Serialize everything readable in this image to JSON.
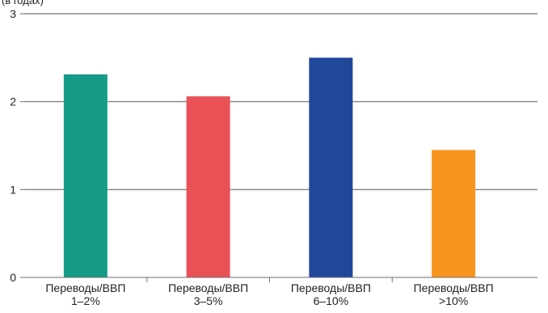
{
  "chart_data": {
    "type": "bar",
    "title": "",
    "xlabel": "",
    "ylabel": "(в годах)",
    "ylim": [
      0,
      3
    ],
    "yticks": [
      0,
      1,
      2,
      3
    ],
    "grid": "horizontal",
    "categories": [
      [
        "Переводы/ВВП",
        "1–2%"
      ],
      [
        "Переводы/ВВП",
        "3–5%"
      ],
      [
        "Переводы/ВВП",
        "6–10%"
      ],
      [
        "Переводы/ВВП",
        ">10%"
      ]
    ],
    "values": [
      2.31,
      2.06,
      2.5,
      1.45
    ],
    "colors": [
      "#169c86",
      "#e85257",
      "#21479b",
      "#f7941d"
    ]
  }
}
